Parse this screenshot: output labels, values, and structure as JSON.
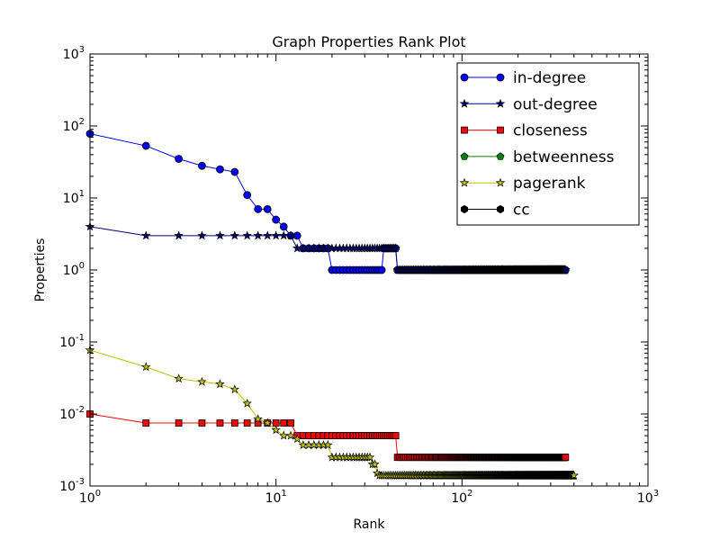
{
  "chart_data": {
    "type": "line",
    "title": "Graph Properties Rank Plot",
    "xlabel": "Rank",
    "ylabel": "Properties",
    "xscale": "log",
    "yscale": "log",
    "xlim": [
      1,
      1000
    ],
    "ylim": [
      0.001,
      1000
    ],
    "x_ticks": [
      {
        "value": 1,
        "base": "10",
        "exp": "0"
      },
      {
        "value": 10,
        "base": "10",
        "exp": "1"
      },
      {
        "value": 100,
        "base": "10",
        "exp": "2"
      },
      {
        "value": 1000,
        "base": "10",
        "exp": "3"
      }
    ],
    "y_ticks": [
      {
        "value": 0.001,
        "base": "10",
        "exp": "-3"
      },
      {
        "value": 0.01,
        "base": "10",
        "exp": "-2"
      },
      {
        "value": 0.1,
        "base": "10",
        "exp": "-1"
      },
      {
        "value": 1,
        "base": "10",
        "exp": "0"
      },
      {
        "value": 10,
        "base": "10",
        "exp": "1"
      },
      {
        "value": 100,
        "base": "10",
        "exp": "2"
      },
      {
        "value": 1000,
        "base": "10",
        "exp": "3"
      }
    ],
    "grid": false,
    "legend_position": "top-right",
    "series": [
      {
        "name": "in-degree",
        "color": "#0000ff",
        "marker": "circle",
        "points": [
          [
            1,
            78
          ],
          [
            2,
            53
          ],
          [
            3,
            35
          ],
          [
            4,
            28
          ],
          [
            5,
            25
          ],
          [
            6,
            23
          ],
          [
            7,
            11
          ],
          [
            8,
            7
          ],
          [
            9,
            7
          ],
          [
            10,
            5
          ],
          [
            11,
            4
          ],
          [
            12,
            3
          ],
          [
            13,
            3
          ],
          {
            "range": [
              14,
              19
            ],
            "y": 2
          },
          {
            "range": [
              20,
              36
            ],
            "y": 1
          },
          [
            37,
            1
          ],
          {
            "range": [
              38,
              44
            ],
            "y": 2
          },
          {
            "range": [
              45,
              360
            ],
            "y": 1
          }
        ]
      },
      {
        "name": "out-degree",
        "color": "#000080",
        "marker": "star",
        "points": [
          [
            1,
            4
          ],
          [
            2,
            3
          ],
          [
            3,
            3
          ],
          [
            4,
            3
          ],
          [
            5,
            3
          ],
          [
            6,
            3
          ],
          [
            7,
            3
          ],
          [
            8,
            3
          ],
          [
            9,
            3
          ],
          [
            10,
            3
          ],
          [
            11,
            3
          ],
          [
            12,
            3
          ],
          [
            13,
            2
          ],
          {
            "range": [
              14,
              44
            ],
            "y": 2
          },
          {
            "range": [
              45,
              360
            ],
            "y": 1
          }
        ]
      },
      {
        "name": "closeness",
        "color": "#ff0000",
        "marker": "square",
        "points": [
          [
            1,
            0.01
          ],
          [
            2,
            0.0075
          ],
          [
            3,
            0.0075
          ],
          [
            4,
            0.0075
          ],
          [
            5,
            0.0075
          ],
          [
            6,
            0.0075
          ],
          [
            7,
            0.0075
          ],
          [
            8,
            0.0075
          ],
          [
            9,
            0.0075
          ],
          [
            10,
            0.0075
          ],
          [
            11,
            0.0075
          ],
          [
            12,
            0.0075
          ],
          {
            "range": [
              13,
              44
            ],
            "y": 0.005
          },
          {
            "range": [
              45,
              360
            ],
            "y": 0.0025
          }
        ]
      },
      {
        "name": "betweenness",
        "color": "#008000",
        "marker": "pentagon",
        "points": []
      },
      {
        "name": "pagerank",
        "color": "#bfbf00",
        "marker": "star",
        "points": [
          [
            1,
            0.077
          ],
          [
            2,
            0.045
          ],
          [
            3,
            0.031
          ],
          [
            4,
            0.028
          ],
          [
            5,
            0.026
          ],
          [
            6,
            0.022
          ],
          [
            7,
            0.014
          ],
          [
            8,
            0.0085
          ],
          [
            9,
            0.0075
          ],
          [
            10,
            0.006
          ],
          [
            11,
            0.005
          ],
          [
            12,
            0.005
          ],
          [
            13,
            0.0045
          ],
          {
            "range": [
              14,
              19
            ],
            "y": 0.0037
          },
          {
            "range": [
              20,
              32
            ],
            "y": 0.0025
          },
          [
            33,
            0.002
          ],
          [
            34,
            0.002
          ],
          [
            35,
            0.0015
          ],
          {
            "range": [
              36,
              400
            ],
            "y": 0.0014
          }
        ]
      },
      {
        "name": "cc",
        "color": "#000000",
        "marker": "hexagon",
        "points": []
      }
    ]
  }
}
